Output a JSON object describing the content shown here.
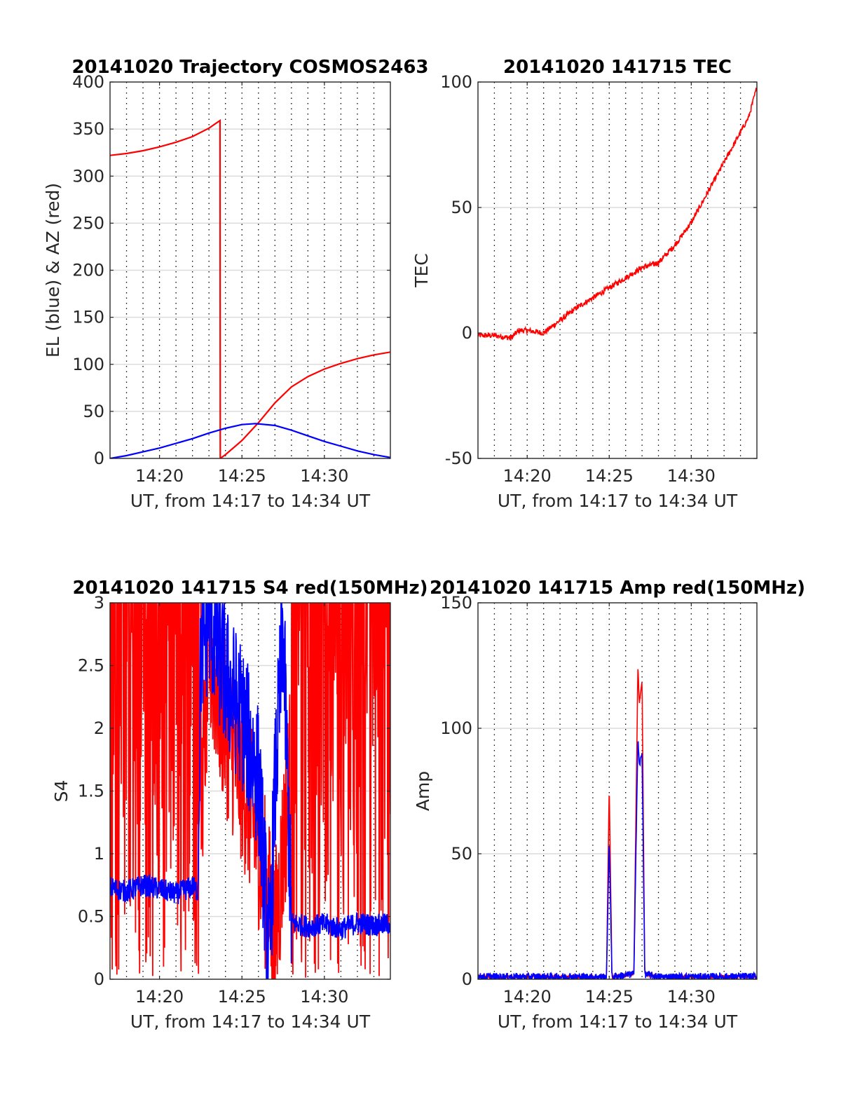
{
  "chart_data": [
    {
      "type": "line",
      "title": "20141020 Trajectory COSMOS2463",
      "xlabel": "UT, from 14:17 to 14:34 UT",
      "ylabel": "EL (blue) & AZ (red)",
      "xlim": [
        "14:17",
        "14:34"
      ],
      "ylim": [
        0,
        400
      ],
      "xticks": [
        "14:20",
        "14:25",
        "14:30"
      ],
      "yticks": [
        "0",
        "50",
        "100",
        "150",
        "200",
        "250",
        "300",
        "350",
        "400"
      ],
      "grid": true,
      "colors": {
        "EL": "#0000ff",
        "AZ": "#ff0000"
      },
      "series": [
        {
          "name": "AZ",
          "color": "#ff0000",
          "x": [
            "14:17:00",
            "14:18:00",
            "14:19:00",
            "14:20:00",
            "14:21:00",
            "14:22:00",
            "14:23:00",
            "14:23:40",
            "14:23:41",
            "14:24:00",
            "14:25:00",
            "14:26:00",
            "14:27:00",
            "14:28:00",
            "14:29:00",
            "14:30:00",
            "14:31:00",
            "14:32:00",
            "14:33:00",
            "14:34:00"
          ],
          "y": [
            322,
            324,
            327,
            331,
            336,
            342,
            351,
            359,
            0,
            4,
            19,
            38,
            59,
            76,
            87,
            95,
            101,
            106,
            110,
            113
          ]
        },
        {
          "name": "EL",
          "color": "#0000ff",
          "x": [
            "14:17:00",
            "14:18:00",
            "14:19:00",
            "14:20:00",
            "14:21:00",
            "14:22:00",
            "14:23:00",
            "14:24:00",
            "14:25:00",
            "14:25:50",
            "14:27:00",
            "14:28:00",
            "14:29:00",
            "14:30:00",
            "14:31:00",
            "14:32:00",
            "14:33:00",
            "14:34:00"
          ],
          "y": [
            0,
            3,
            7,
            11,
            16,
            21,
            27,
            32,
            36,
            37,
            35,
            30,
            24,
            18,
            13,
            8,
            4,
            1
          ]
        }
      ]
    },
    {
      "type": "line",
      "title": "20141020 141715 TEC",
      "xlabel": "UT, from 14:17 to 14:34 UT",
      "ylabel": "TEC",
      "xlim": [
        "14:17",
        "14:34"
      ],
      "ylim": [
        -50,
        100
      ],
      "xticks": [
        "14:20",
        "14:25",
        "14:30"
      ],
      "yticks": [
        "-50",
        "0",
        "50",
        "100"
      ],
      "grid": true,
      "series": [
        {
          "color": "#ff0000",
          "x": [
            "14:17:00",
            "14:18:00",
            "14:19:00",
            "14:19:30",
            "14:20:00",
            "14:21:00",
            "14:22:00",
            "14:23:00",
            "14:24:00",
            "14:25:00",
            "14:26:00",
            "14:27:00",
            "14:28:00",
            "14:29:00",
            "14:30:00",
            "14:31:00",
            "14:32:00",
            "14:33:00",
            "14:33:30",
            "14:34:00"
          ],
          "y": [
            -1,
            -1,
            -2,
            1,
            1,
            0,
            5,
            10,
            14,
            18,
            22,
            26,
            28,
            35,
            44,
            56,
            68,
            80,
            86,
            98
          ]
        }
      ]
    },
    {
      "type": "line",
      "title": "20141020 141715 S4 red(150MHz)",
      "xlabel": "UT, from 14:17 to 14:34 UT",
      "ylabel": "S4",
      "xlim": [
        "14:17",
        "14:34"
      ],
      "ylim": [
        0,
        3
      ],
      "xticks": [
        "14:20",
        "14:25",
        "14:30"
      ],
      "yticks": [
        "0",
        "0.5",
        "1",
        "1.5",
        "2",
        "2.5",
        "3"
      ],
      "grid": true,
      "series": [
        {
          "color": "#ff0000",
          "x": [
            "14:17:00",
            "14:18:00",
            "14:19:00",
            "14:20:00",
            "14:21:00",
            "14:22:00",
            "14:23:00",
            "14:24:00",
            "14:25:00",
            "14:26:00",
            "14:27:00",
            "14:28:00",
            "14:29:00",
            "14:30:00",
            "14:31:00",
            "14:32:00",
            "14:33:00",
            "14:34:00"
          ],
          "y": [
            3.0,
            0.0,
            3.0,
            0.0,
            3.0,
            0.0,
            2.6,
            2.0,
            1.6,
            1.1,
            0.3,
            1.8,
            2.3,
            3.0,
            0.0,
            3.0,
            0.0,
            3.0
          ]
        },
        {
          "color": "#0000ff",
          "x": [
            "14:17:00",
            "14:18:00",
            "14:19:00",
            "14:20:00",
            "14:21:00",
            "14:22:00",
            "14:22:20",
            "14:22:30",
            "14:23:00",
            "14:24:00",
            "14:25:00",
            "14:26:00",
            "14:26:40",
            "14:27:00",
            "14:27:30",
            "14:28:00",
            "14:29:00",
            "14:30:00",
            "14:31:00",
            "14:32:00",
            "14:33:00",
            "14:34:00"
          ],
          "y": [
            0.73,
            0.7,
            0.75,
            0.72,
            0.68,
            0.74,
            0.7,
            2.6,
            2.9,
            2.4,
            2.1,
            1.6,
            0.15,
            1.5,
            2.8,
            0.45,
            0.42,
            0.44,
            0.4,
            0.45,
            0.43,
            0.44
          ]
        }
      ]
    },
    {
      "type": "line",
      "title": "20141020 141715 Amp red(150MHz)",
      "xlabel": "UT, from 14:17 to 14:34 UT",
      "ylabel": "Amp",
      "xlim": [
        "14:17",
        "14:34"
      ],
      "ylim": [
        0,
        150
      ],
      "xticks": [
        "14:20",
        "14:25",
        "14:30"
      ],
      "yticks": [
        "0",
        "50",
        "100",
        "150"
      ],
      "grid": true,
      "series": [
        {
          "color": "#ff0000",
          "x": [
            "14:17:00",
            "14:24:50",
            "14:25:00",
            "14:25:10",
            "14:26:30",
            "14:26:45",
            "14:26:50",
            "14:27:00",
            "14:27:10",
            "14:28:00",
            "14:34:00"
          ],
          "y": [
            1,
            1,
            77,
            1,
            2,
            125,
            110,
            119,
            2,
            1,
            1
          ]
        },
        {
          "color": "#0000ff",
          "x": [
            "14:17:00",
            "14:24:50",
            "14:25:00",
            "14:25:10",
            "14:26:30",
            "14:26:45",
            "14:26:50",
            "14:27:00",
            "14:27:10",
            "14:28:00",
            "14:34:00"
          ],
          "y": [
            1,
            1,
            55,
            1,
            2,
            96,
            85,
            90,
            2,
            1,
            1
          ]
        }
      ]
    }
  ]
}
